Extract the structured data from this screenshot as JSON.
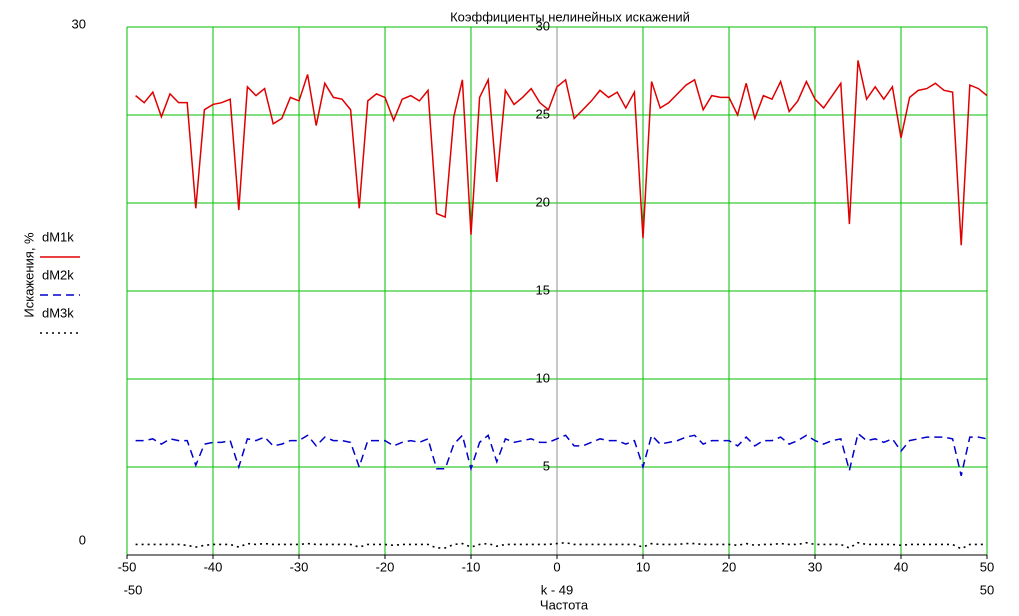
{
  "chart_data": {
    "type": "line",
    "title": "Коэффициенты нелинейных искажений",
    "x_label": "k - 49",
    "x_sublabel": "Частота",
    "y_label": "Искажения, %",
    "x": [
      -49,
      -48,
      -47,
      -46,
      -45,
      -44,
      -43,
      -42,
      -41,
      -40,
      -39,
      -38,
      -37,
      -36,
      -35,
      -34,
      -33,
      -32,
      -31,
      -30,
      -29,
      -28,
      -27,
      -26,
      -25,
      -24,
      -23,
      -22,
      -21,
      -20,
      -19,
      -18,
      -17,
      -16,
      -15,
      -14,
      -13,
      -12,
      -11,
      -10,
      -9,
      -8,
      -7,
      -6,
      -5,
      -4,
      -3,
      -2,
      -1,
      0,
      1,
      2,
      3,
      4,
      5,
      6,
      7,
      8,
      9,
      10,
      11,
      12,
      13,
      14,
      15,
      16,
      17,
      18,
      19,
      20,
      21,
      22,
      23,
      24,
      25,
      26,
      27,
      28,
      29,
      30,
      31,
      32,
      33,
      34,
      35,
      36,
      37,
      38,
      39,
      40,
      41,
      42,
      43,
      44,
      45,
      46,
      47,
      48,
      49,
      50
    ],
    "series": [
      {
        "name": "dM1k",
        "color": "#e00000",
        "style": "solid",
        "values": [
          26.1,
          25.7,
          26.3,
          24.9,
          26.2,
          25.7,
          25.7,
          19.7,
          25.3,
          25.6,
          25.7,
          25.9,
          19.6,
          26.6,
          26.1,
          26.5,
          24.5,
          24.8,
          26.0,
          25.8,
          27.3,
          24.4,
          26.8,
          26.0,
          25.9,
          25.3,
          19.7,
          25.8,
          26.2,
          26.0,
          24.7,
          25.9,
          26.1,
          25.8,
          26.4,
          19.4,
          19.2,
          24.9,
          27.0,
          18.2,
          26.0,
          27.0,
          21.2,
          26.4,
          25.6,
          26.0,
          26.5,
          25.7,
          25.3,
          26.6,
          27.0,
          24.8,
          25.3,
          25.8,
          26.4,
          26.0,
          26.3,
          25.4,
          26.3,
          18.0,
          26.9,
          25.4,
          25.7,
          26.2,
          26.7,
          27.0,
          25.3,
          26.1,
          26.0,
          26.0,
          25.0,
          26.8,
          24.8,
          26.1,
          25.9,
          26.9,
          25.2,
          25.8,
          26.9,
          25.9,
          25.4,
          26.1,
          26.8,
          18.8,
          28.1,
          25.9,
          26.6,
          25.9,
          26.6,
          23.7,
          26.0,
          26.4,
          26.5,
          26.8,
          26.4,
          26.3,
          17.6,
          26.7,
          26.5,
          26.1
        ]
      },
      {
        "name": "dM2k",
        "color": "#0000cc",
        "style": "dashed",
        "values": [
          6.5,
          6.5,
          6.6,
          6.3,
          6.6,
          6.5,
          6.5,
          5.1,
          6.3,
          6.4,
          6.4,
          6.5,
          5.0,
          6.6,
          6.5,
          6.7,
          6.2,
          6.3,
          6.5,
          6.5,
          6.8,
          6.2,
          6.7,
          6.5,
          6.5,
          6.4,
          5.0,
          6.5,
          6.5,
          6.5,
          6.2,
          6.4,
          6.5,
          6.4,
          6.6,
          4.9,
          4.9,
          6.3,
          6.8,
          4.9,
          6.4,
          6.8,
          5.3,
          6.6,
          6.4,
          6.5,
          6.6,
          6.4,
          6.4,
          6.6,
          6.8,
          6.2,
          6.2,
          6.4,
          6.6,
          6.5,
          6.5,
          6.3,
          6.5,
          5.0,
          6.8,
          6.3,
          6.4,
          6.5,
          6.7,
          6.8,
          6.3,
          6.5,
          6.5,
          6.5,
          6.2,
          6.7,
          6.2,
          6.5,
          6.5,
          6.7,
          6.3,
          6.5,
          6.8,
          6.5,
          6.3,
          6.5,
          6.6,
          4.8,
          6.9,
          6.5,
          6.6,
          6.4,
          6.6,
          5.9,
          6.5,
          6.6,
          6.7,
          6.7,
          6.7,
          6.6,
          4.5,
          6.7,
          6.7,
          6.6
        ]
      },
      {
        "name": "dM3k",
        "color": "#000000",
        "style": "dotted",
        "values": [
          0.6,
          0.6,
          0.6,
          0.6,
          0.6,
          0.6,
          0.55,
          0.45,
          0.55,
          0.6,
          0.6,
          0.6,
          0.45,
          0.65,
          0.6,
          0.65,
          0.6,
          0.6,
          0.6,
          0.6,
          0.65,
          0.6,
          0.6,
          0.6,
          0.6,
          0.6,
          0.45,
          0.6,
          0.6,
          0.6,
          0.55,
          0.6,
          0.6,
          0.6,
          0.6,
          0.4,
          0.4,
          0.6,
          0.65,
          0.45,
          0.6,
          0.65,
          0.5,
          0.6,
          0.6,
          0.6,
          0.6,
          0.6,
          0.6,
          0.65,
          0.7,
          0.6,
          0.6,
          0.6,
          0.6,
          0.6,
          0.6,
          0.6,
          0.6,
          0.45,
          0.65,
          0.6,
          0.6,
          0.6,
          0.65,
          0.65,
          0.6,
          0.6,
          0.6,
          0.6,
          0.55,
          0.65,
          0.55,
          0.6,
          0.6,
          0.65,
          0.6,
          0.6,
          0.7,
          0.6,
          0.6,
          0.6,
          0.6,
          0.4,
          0.7,
          0.6,
          0.6,
          0.6,
          0.6,
          0.55,
          0.6,
          0.6,
          0.6,
          0.6,
          0.6,
          0.6,
          0.35,
          0.6,
          0.6,
          0.6
        ]
      }
    ],
    "xlim": [
      -50,
      50
    ],
    "ylim": [
      0,
      30
    ],
    "xticks": [
      -50,
      -40,
      -30,
      -20,
      -10,
      0,
      10,
      20,
      30,
      40,
      50
    ],
    "yticks": [
      5,
      10,
      15,
      20,
      25,
      30
    ],
    "grid": true,
    "grid_color": "#00c000",
    "legend": "left"
  }
}
